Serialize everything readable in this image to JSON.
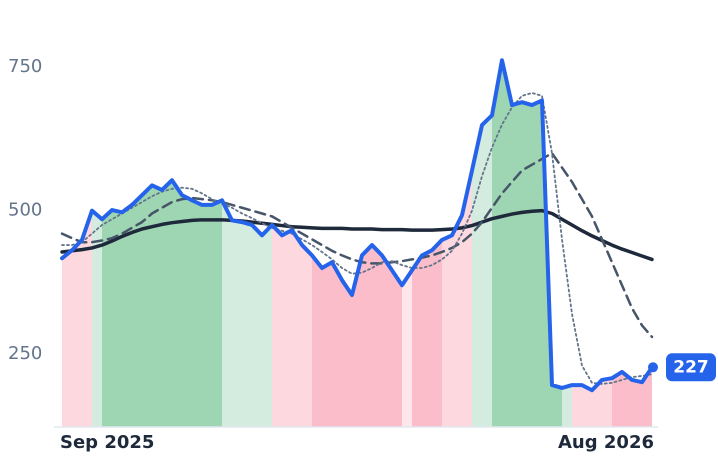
{
  "chart_data": {
    "type": "line",
    "categories": [
      "Sep 2025",
      null,
      null,
      null,
      null,
      null,
      null,
      null,
      null,
      null,
      null,
      null,
      null,
      null,
      null,
      null,
      null,
      null,
      null,
      null,
      null,
      null,
      null,
      null,
      null,
      null,
      null,
      null,
      null,
      null,
      null,
      null,
      null,
      null,
      null,
      null,
      null,
      null,
      null,
      null,
      null,
      null,
      null,
      null,
      null,
      null,
      null,
      null,
      null,
      null,
      null,
      null,
      null,
      null,
      null,
      null,
      null,
      null,
      null,
      "Aug 2026"
    ],
    "ylim": [
      123,
      867
    ],
    "yticks": [
      250,
      500,
      750
    ],
    "series": [
      {
        "color": "#2563eb",
        "values": [
          417,
          431,
          449,
          500,
          485,
          501,
          497,
          510,
          527,
          544,
          536,
          553,
          527,
          518,
          510,
          510,
          518,
          483,
          480,
          475,
          457,
          475,
          457,
          466,
          440,
          422,
          400,
          410,
          379,
          353,
          422,
          440,
          422,
          396,
          370,
          396,
          422,
          431,
          449,
          457,
          492,
          570,
          649,
          666,
          762,
          684,
          689,
          684,
          692,
          196,
          191,
          196,
          196,
          187,
          205,
          208,
          219,
          205,
          201,
          227
        ],
        "value_labels": [
          null,
          null,
          null,
          null,
          null,
          null,
          null,
          null,
          null,
          null,
          null,
          null,
          null,
          null,
          null,
          null,
          null,
          null,
          null,
          null,
          null,
          null,
          null,
          null,
          null,
          null,
          null,
          null,
          null,
          null,
          null,
          null,
          null,
          null,
          null,
          null,
          null,
          null,
          null,
          null,
          null,
          null,
          null,
          null,
          null,
          null,
          null,
          null,
          null,
          null,
          null,
          null,
          null,
          null,
          null,
          null,
          null,
          null,
          null,
          "227"
        ]
      },
      {
        "color": "#1e293b",
        "values": [
          428,
          430,
          432,
          435,
          440,
          447,
          455,
          462,
          468,
          472,
          476,
          479,
          481,
          483,
          484,
          484,
          484,
          483,
          482,
          480,
          478,
          476,
          474,
          472,
          471,
          470,
          469,
          469,
          469,
          468,
          468,
          468,
          467,
          467,
          467,
          466,
          466,
          466,
          467,
          468,
          470,
          474,
          480,
          486,
          490,
          494,
          497,
          499,
          500,
          495,
          485,
          475,
          465,
          456,
          448,
          440,
          433,
          427,
          421,
          415
        ]
      },
      {
        "color": "#475569",
        "dash": "10 6",
        "values": [
          460,
          452,
          445,
          445,
          448,
          452,
          460,
          470,
          480,
          495,
          505,
          515,
          520,
          522,
          520,
          518,
          515,
          510,
          505,
          500,
          495,
          490,
          480,
          470,
          460,
          450,
          440,
          430,
          422,
          415,
          410,
          408,
          408,
          410,
          412,
          415,
          418,
          422,
          428,
          435,
          445,
          460,
          480,
          505,
          530,
          550,
          570,
          580,
          590,
          600,
          575,
          550,
          520,
          490,
          450,
          410,
          370,
          330,
          300,
          280
        ]
      },
      {
        "color": "#64748b",
        "dash": "2 3",
        "values": [
          440,
          440,
          445,
          460,
          475,
          485,
          495,
          505,
          515,
          525,
          533,
          538,
          540,
          538,
          530,
          520,
          512,
          505,
          495,
          487,
          478,
          470,
          465,
          460,
          450,
          440,
          428,
          415,
          400,
          390,
          392,
          400,
          410,
          412,
          405,
          400,
          400,
          405,
          415,
          430,
          460,
          500,
          560,
          610,
          650,
          680,
          700,
          705,
          700,
          600,
          450,
          320,
          230,
          200,
          198,
          200,
          205,
          210,
          212,
          215
        ]
      }
    ],
    "regions": [
      {
        "start": 0,
        "end": 3,
        "color": "#fdd5dc"
      },
      {
        "start": 3,
        "end": 4,
        "color": "#cfeadb"
      },
      {
        "start": 4,
        "end": 16,
        "color": "#93d1ab"
      },
      {
        "start": 16,
        "end": 21,
        "color": "#cfeadb"
      },
      {
        "start": 21,
        "end": 25,
        "color": "#fdd5dc"
      },
      {
        "start": 25,
        "end": 34,
        "color": "#f9b6c3"
      },
      {
        "start": 34,
        "end": 35,
        "color": "#fde4e8"
      },
      {
        "start": 35,
        "end": 38,
        "color": "#f9b6c3"
      },
      {
        "start": 38,
        "end": 41,
        "color": "#fdd5dc"
      },
      {
        "start": 41,
        "end": 43,
        "color": "#cfeadb"
      },
      {
        "start": 43,
        "end": 50,
        "color": "#93d1ab"
      },
      {
        "start": 50,
        "end": 51,
        "color": "#cfeadb"
      },
      {
        "start": 51,
        "end": 55,
        "color": "#fdd5dc"
      },
      {
        "start": 55,
        "end": 59,
        "color": "#f9b6c3"
      }
    ]
  }
}
